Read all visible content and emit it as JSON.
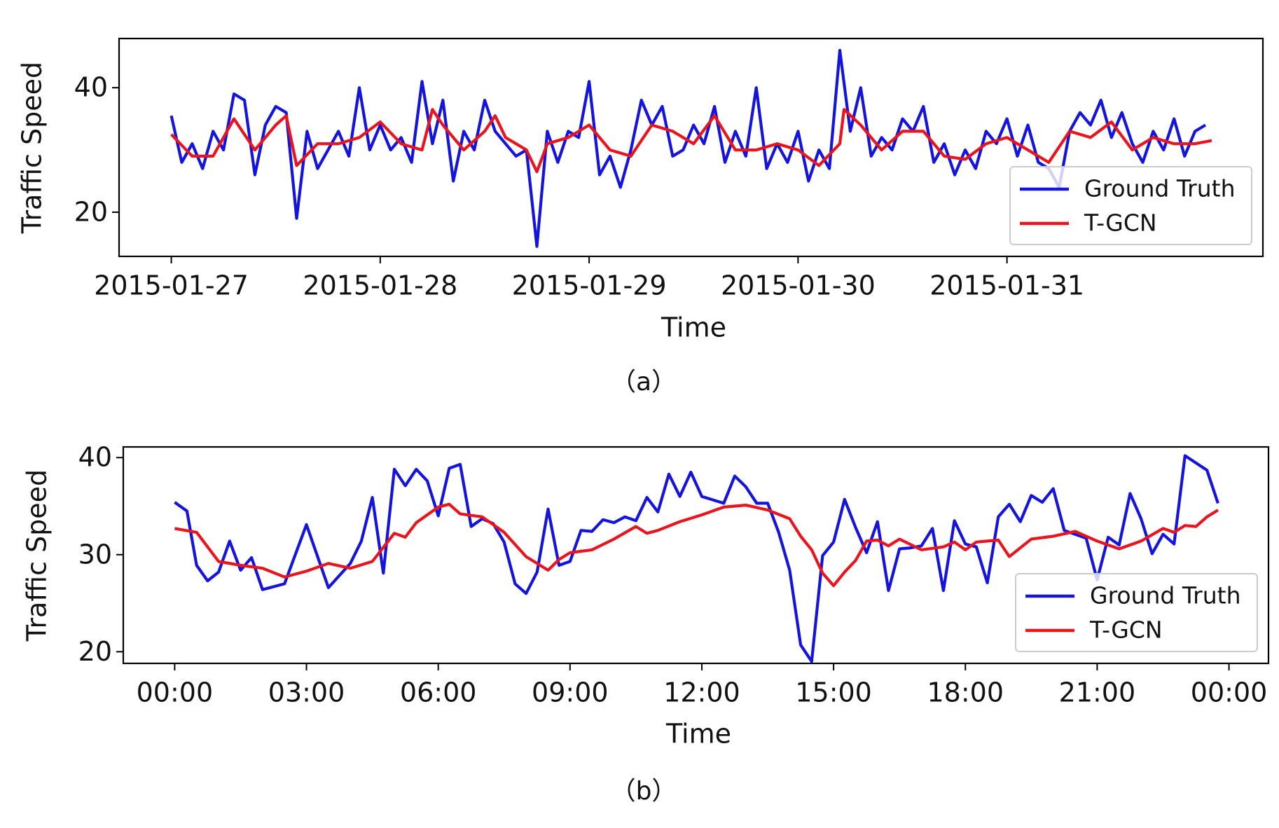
{
  "chart_data": [
    {
      "type": "line",
      "caption": "（a）",
      "x_label": "Time",
      "y_label": "Traffic Speed",
      "xlim": [
        -0.25,
        5.225
      ],
      "ylim": [
        12.9,
        47.9
      ],
      "xticks": [
        {
          "value": 0,
          "label": "2015-01-27"
        },
        {
          "value": 1,
          "label": "2015-01-28"
        },
        {
          "value": 2,
          "label": "2015-01-29"
        },
        {
          "value": 3,
          "label": "2015-01-30"
        },
        {
          "value": 4,
          "label": "2015-01-31"
        }
      ],
      "yticks": [
        20,
        40
      ],
      "legend": "lower right",
      "series": [
        {
          "name": "Ground Truth",
          "color": "#1414dc",
          "x": [
            0,
            0.05,
            0.1,
            0.15,
            0.2,
            0.25,
            0.3,
            0.35,
            0.4,
            0.45,
            0.5,
            0.55,
            0.6,
            0.65,
            0.7,
            0.75,
            0.8,
            0.85,
            0.9,
            0.95,
            1,
            1.05,
            1.1,
            1.15,
            1.2,
            1.25,
            1.3,
            1.35,
            1.4,
            1.45,
            1.5,
            1.55,
            1.6,
            1.65,
            1.7,
            1.75,
            1.8,
            1.85,
            1.9,
            1.95,
            2,
            2.05,
            2.1,
            2.15,
            2.2,
            2.25,
            2.3,
            2.35,
            2.4,
            2.45,
            2.5,
            2.55,
            2.6,
            2.65,
            2.7,
            2.75,
            2.8,
            2.85,
            2.9,
            2.95,
            3,
            3.05,
            3.1,
            3.15,
            3.2,
            3.25,
            3.3,
            3.35,
            3.4,
            3.45,
            3.5,
            3.55,
            3.6,
            3.65,
            3.7,
            3.75,
            3.8,
            3.85,
            3.9,
            3.95,
            4,
            4.05,
            4.1,
            4.15,
            4.2,
            4.25,
            4.3,
            4.35,
            4.4,
            4.45,
            4.5,
            4.55,
            4.6,
            4.65,
            4.7,
            4.75,
            4.8,
            4.85,
            4.9,
            4.95
          ],
          "values": [
            35.5,
            28,
            31,
            27,
            33,
            30,
            39,
            38,
            26,
            34,
            37,
            36,
            19,
            33,
            27,
            30,
            33,
            29,
            40,
            30,
            34,
            30,
            32,
            28,
            41,
            31,
            38,
            25,
            33,
            30,
            38,
            33,
            31,
            29,
            30,
            14.5,
            33,
            28,
            33,
            32,
            41,
            26,
            29,
            24,
            30,
            38,
            34,
            37,
            29,
            30,
            34,
            31,
            37,
            28,
            33,
            29,
            40,
            27,
            31,
            28,
            33,
            25,
            30,
            27,
            46,
            33,
            40,
            29,
            32,
            30,
            35,
            33,
            37,
            28,
            31,
            26,
            30,
            27,
            33,
            31,
            35,
            29,
            34,
            28,
            27,
            24,
            33,
            36,
            34,
            38,
            32,
            36,
            31,
            28,
            33,
            30,
            35,
            29,
            33,
            34
          ]
        },
        {
          "name": "T-GCN",
          "color": "#e8141e",
          "x": [
            0,
            0.1,
            0.2,
            0.3,
            0.4,
            0.5,
            0.55,
            0.6,
            0.7,
            0.8,
            0.9,
            1,
            1.1,
            1.2,
            1.25,
            1.3,
            1.4,
            1.5,
            1.55,
            1.6,
            1.7,
            1.75,
            1.8,
            1.9,
            2,
            2.1,
            2.2,
            2.3,
            2.4,
            2.5,
            2.6,
            2.7,
            2.8,
            2.9,
            3,
            3.1,
            3.2,
            3.22,
            3.3,
            3.4,
            3.5,
            3.6,
            3.7,
            3.8,
            3.9,
            4,
            4.1,
            4.2,
            4.3,
            4.4,
            4.5,
            4.6,
            4.7,
            4.8,
            4.9,
            4.98
          ],
          "values": [
            32.5,
            29,
            29,
            35,
            30,
            34,
            35.5,
            27.5,
            31,
            31,
            32,
            34.5,
            31,
            30,
            36.5,
            34,
            30,
            33,
            35.5,
            32,
            30,
            26.5,
            31,
            32,
            34,
            30,
            29,
            34,
            33,
            31,
            35.5,
            30,
            30,
            31,
            30,
            27.5,
            31,
            36.5,
            34,
            30,
            33,
            33,
            29,
            28.5,
            31,
            32,
            30,
            28,
            33,
            32,
            34.5,
            30,
            32,
            31,
            31,
            31.5
          ]
        }
      ]
    },
    {
      "type": "line",
      "caption": "（b）",
      "x_label": "Time",
      "y_label": "Traffic Speed",
      "xlim": [
        -1.17,
        24.9
      ],
      "ylim": [
        18.8,
        41.1
      ],
      "xticks": [
        {
          "value": 0,
          "label": "00:00"
        },
        {
          "value": 3,
          "label": "03:00"
        },
        {
          "value": 6,
          "label": "06:00"
        },
        {
          "value": 9,
          "label": "09:00"
        },
        {
          "value": 12,
          "label": "12:00"
        },
        {
          "value": 15,
          "label": "15:00"
        },
        {
          "value": 18,
          "label": "18:00"
        },
        {
          "value": 21,
          "label": "21:00"
        },
        {
          "value": 24,
          "label": "00:00"
        }
      ],
      "yticks": [
        20,
        30,
        40
      ],
      "legend": "lower right",
      "series": [
        {
          "name": "Ground Truth",
          "color": "#1414dc",
          "x": [
            0,
            0.28,
            0.5,
            0.75,
            1,
            1.25,
            1.5,
            1.75,
            2,
            2.5,
            3,
            3.5,
            4,
            4.25,
            4.5,
            4.75,
            5,
            5.25,
            5.5,
            5.75,
            6,
            6.25,
            6.5,
            6.75,
            7,
            7.25,
            7.5,
            7.75,
            8,
            8.25,
            8.5,
            8.75,
            9,
            9.25,
            9.5,
            9.75,
            10,
            10.25,
            10.5,
            10.75,
            11,
            11.25,
            11.5,
            11.75,
            12,
            12.5,
            12.75,
            13,
            13.25,
            13.5,
            13.75,
            14,
            14.25,
            14.5,
            14.75,
            15,
            15.25,
            15.5,
            15.75,
            16,
            16.25,
            16.5,
            16.75,
            17,
            17.25,
            17.5,
            17.75,
            18,
            18.25,
            18.5,
            18.75,
            19,
            19.25,
            19.5,
            19.75,
            20,
            20.25,
            20.75,
            21,
            21.25,
            21.5,
            21.75,
            22,
            22.25,
            22.5,
            22.75,
            23,
            23.5,
            23.75
          ],
          "values": [
            35.4,
            34.5,
            28.9,
            27.3,
            28.2,
            31.4,
            28.4,
            29.7,
            26.4,
            27,
            33.1,
            26.6,
            29.1,
            31.4,
            35.9,
            28.1,
            38.8,
            37.1,
            38.8,
            37.6,
            34,
            38.9,
            39.3,
            32.9,
            33.7,
            33.2,
            31.3,
            27,
            26,
            28.2,
            34.7,
            28.9,
            29.3,
            32.5,
            32.4,
            33.6,
            33.3,
            33.9,
            33.5,
            35.9,
            34.4,
            38.3,
            36,
            38.5,
            36,
            35.3,
            38.1,
            37,
            35.3,
            35.3,
            32.3,
            28.4,
            20.7,
            19,
            29.9,
            31.3,
            35.7,
            32.8,
            30.2,
            33.4,
            26.3,
            30.6,
            30.7,
            30.9,
            32.7,
            26.3,
            33.5,
            31.1,
            30.8,
            27.1,
            33.9,
            35.2,
            33.4,
            36.1,
            35.4,
            36.8,
            32.5,
            31.7,
            27.4,
            31.8,
            31,
            36.3,
            33.7,
            30.1,
            32.1,
            31.1,
            40.2,
            38.7,
            35.3
          ]
        },
        {
          "name": "T-GCN",
          "color": "#e8141e",
          "x": [
            0,
            0.5,
            1,
            1.5,
            2,
            2.5,
            3,
            3.5,
            4,
            4.5,
            5,
            5.25,
            5.5,
            6,
            6.25,
            6.5,
            7,
            7.5,
            8,
            8.5,
            8.75,
            9,
            9.5,
            10,
            10.5,
            10.75,
            11,
            11.5,
            12,
            12.5,
            13,
            13.5,
            14,
            14.25,
            14.5,
            14.75,
            15,
            15.25,
            15.5,
            15.75,
            16,
            16.25,
            16.5,
            17,
            17.5,
            17.75,
            18,
            18.25,
            18.75,
            19,
            19.5,
            20,
            20.5,
            21,
            21.5,
            22,
            22.5,
            22.75,
            23,
            23.25,
            23.5,
            23.75
          ],
          "values": [
            32.7,
            32.3,
            29.3,
            28.9,
            28.6,
            27.7,
            28.3,
            29.1,
            28.6,
            29.3,
            32.2,
            31.8,
            33.3,
            34.9,
            35.2,
            34.2,
            33.9,
            32.3,
            29.8,
            28.4,
            29.5,
            30.2,
            30.5,
            31.6,
            32.9,
            32.2,
            32.5,
            33.4,
            34.1,
            34.9,
            35.1,
            34.6,
            33.7,
            31.9,
            30.5,
            28.1,
            26.8,
            28.2,
            29.4,
            31.4,
            31.5,
            30.9,
            31.6,
            30.5,
            30.8,
            31.3,
            30.5,
            31.3,
            31.5,
            29.8,
            31.6,
            31.9,
            32.4,
            31.4,
            30.6,
            31.4,
            32.7,
            32.3,
            33,
            32.9,
            33.9,
            34.6
          ]
        }
      ]
    }
  ]
}
